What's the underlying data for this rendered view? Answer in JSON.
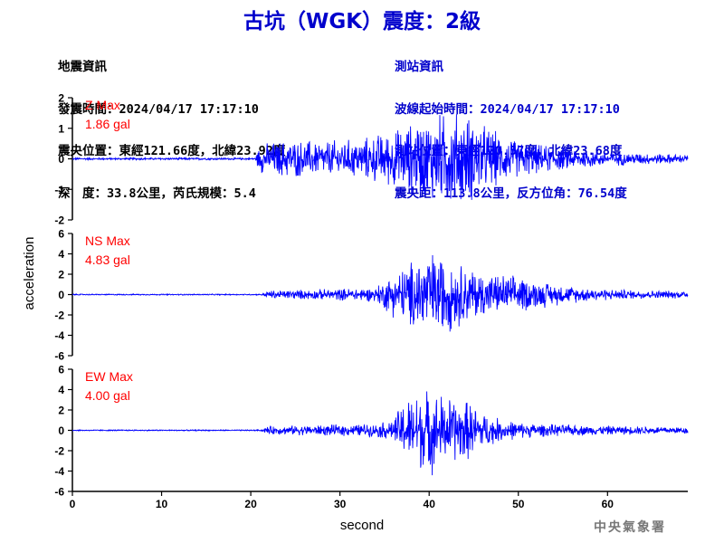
{
  "title": "古坑（WGK）震度：2級",
  "earthquake_info": {
    "heading": "地震資訊",
    "origin_time": "發震時間：2024/04/17 17:17:10",
    "epicenter": "震央位置：東經121.66度，北緯23.92度",
    "depth_magnitude": "深　度：33.8公里，芮氏規模：5.4"
  },
  "station_info": {
    "heading": "測站資訊",
    "wave_start": "波線起始時間：2024/04/17 17:17:10",
    "station_location": "測站位置：東經120.57度，北緯23.68度",
    "distance_azimuth": "震央距：113.8公里，反方位角：76.54度"
  },
  "agency": "中央氣象署",
  "colors": {
    "trace": "#0000ff",
    "label": "#ff0000",
    "title": "#0000cc",
    "axis": "#000000"
  },
  "chart_data": {
    "type": "line",
    "xlabel": "second",
    "ylabel": "acceleration",
    "xlim": [
      0,
      69
    ],
    "xticks": [
      0,
      10,
      20,
      30,
      40,
      50,
      60
    ],
    "panels": [
      {
        "name": "Z",
        "max_label": "Z Max",
        "max_value": "1.86 gal",
        "ylim": [
          -2,
          2
        ],
        "yticks": [
          -2,
          -1,
          0,
          1,
          2
        ],
        "envelope": [
          [
            0,
            0.03
          ],
          [
            20.5,
            0.03
          ],
          [
            21,
            0.4
          ],
          [
            24,
            0.55
          ],
          [
            28,
            0.5
          ],
          [
            32,
            0.55
          ],
          [
            36,
            0.8
          ],
          [
            38,
            1.0
          ],
          [
            40,
            1.2
          ],
          [
            42,
            1.3
          ],
          [
            44,
            1.3
          ],
          [
            46,
            1.0
          ],
          [
            48,
            0.7
          ],
          [
            50,
            0.5
          ],
          [
            54,
            0.35
          ],
          [
            58,
            0.25
          ],
          [
            62,
            0.18
          ],
          [
            69,
            0.12
          ]
        ]
      },
      {
        "name": "NS",
        "max_label": "NS Max",
        "max_value": "4.83 gal",
        "ylim": [
          -6,
          6
        ],
        "yticks": [
          -6,
          -4,
          -2,
          0,
          2,
          4,
          6
        ],
        "envelope": [
          [
            0,
            0.05
          ],
          [
            21,
            0.05
          ],
          [
            22,
            0.35
          ],
          [
            28,
            0.45
          ],
          [
            34,
            0.6
          ],
          [
            35.5,
            1.6
          ],
          [
            38,
            2.8
          ],
          [
            40,
            3.6
          ],
          [
            42,
            3.2
          ],
          [
            44,
            2.4
          ],
          [
            46,
            1.9
          ],
          [
            50,
            1.5
          ],
          [
            54,
            0.9
          ],
          [
            58,
            0.55
          ],
          [
            62,
            0.4
          ],
          [
            69,
            0.3
          ]
        ]
      },
      {
        "name": "EW",
        "max_label": "EW Max",
        "max_value": "4.00 gal",
        "ylim": [
          -6,
          6
        ],
        "yticks": [
          -6,
          -4,
          -2,
          0,
          2,
          4,
          6
        ],
        "envelope": [
          [
            0,
            0.05
          ],
          [
            21,
            0.05
          ],
          [
            22,
            0.35
          ],
          [
            28,
            0.45
          ],
          [
            34,
            0.55
          ],
          [
            36,
            0.9
          ],
          [
            37,
            2.4
          ],
          [
            38.5,
            3.2
          ],
          [
            40,
            3.6
          ],
          [
            42,
            2.8
          ],
          [
            44,
            2.6
          ],
          [
            46,
            1.6
          ],
          [
            48,
            0.9
          ],
          [
            52,
            0.55
          ],
          [
            58,
            0.4
          ],
          [
            69,
            0.3
          ]
        ]
      }
    ]
  }
}
